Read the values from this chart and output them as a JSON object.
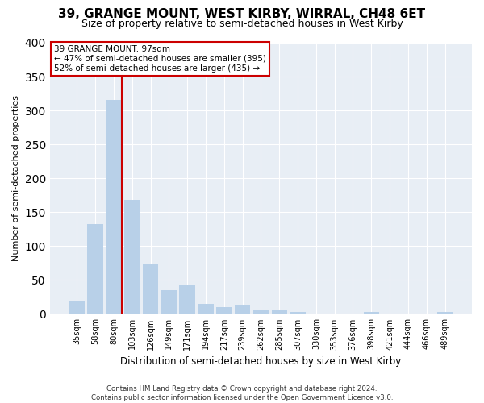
{
  "title_line1": "39, GRANGE MOUNT, WEST KIRBY, WIRRAL, CH48 6ET",
  "title_line2": "Size of property relative to semi-detached houses in West Kirby",
  "xlabel": "Distribution of semi-detached houses by size in West Kirby",
  "ylabel": "Number of semi-detached properties",
  "categories": [
    "35sqm",
    "58sqm",
    "80sqm",
    "103sqm",
    "126sqm",
    "149sqm",
    "171sqm",
    "194sqm",
    "217sqm",
    "239sqm",
    "262sqm",
    "285sqm",
    "307sqm",
    "330sqm",
    "353sqm",
    "376sqm",
    "398sqm",
    "421sqm",
    "444sqm",
    "466sqm",
    "489sqm"
  ],
  "values": [
    20,
    133,
    315,
    168,
    73,
    35,
    42,
    15,
    10,
    12,
    6,
    5,
    3,
    1,
    1,
    0,
    3,
    0,
    0,
    0,
    3
  ],
  "highlight_index": 2,
  "bar_color": "#b8d0e8",
  "highlight_line_color": "#cc0000",
  "annotation_text_line1": "39 GRANGE MOUNT: 97sqm",
  "annotation_text_line2": "← 47% of semi-detached houses are smaller (395)",
  "annotation_text_line3": "52% of semi-detached houses are larger (435) →",
  "annotation_box_color": "#ffffff",
  "annotation_box_edge": "#cc0000",
  "footer_line1": "Contains HM Land Registry data © Crown copyright and database right 2024.",
  "footer_line2": "Contains public sector information licensed under the Open Government Licence v3.0.",
  "ylim": [
    0,
    400
  ],
  "background_color": "#ffffff",
  "plot_background": "#e8eef5",
  "grid_color": "#ffffff",
  "title1_fontsize": 11,
  "title2_fontsize": 9
}
